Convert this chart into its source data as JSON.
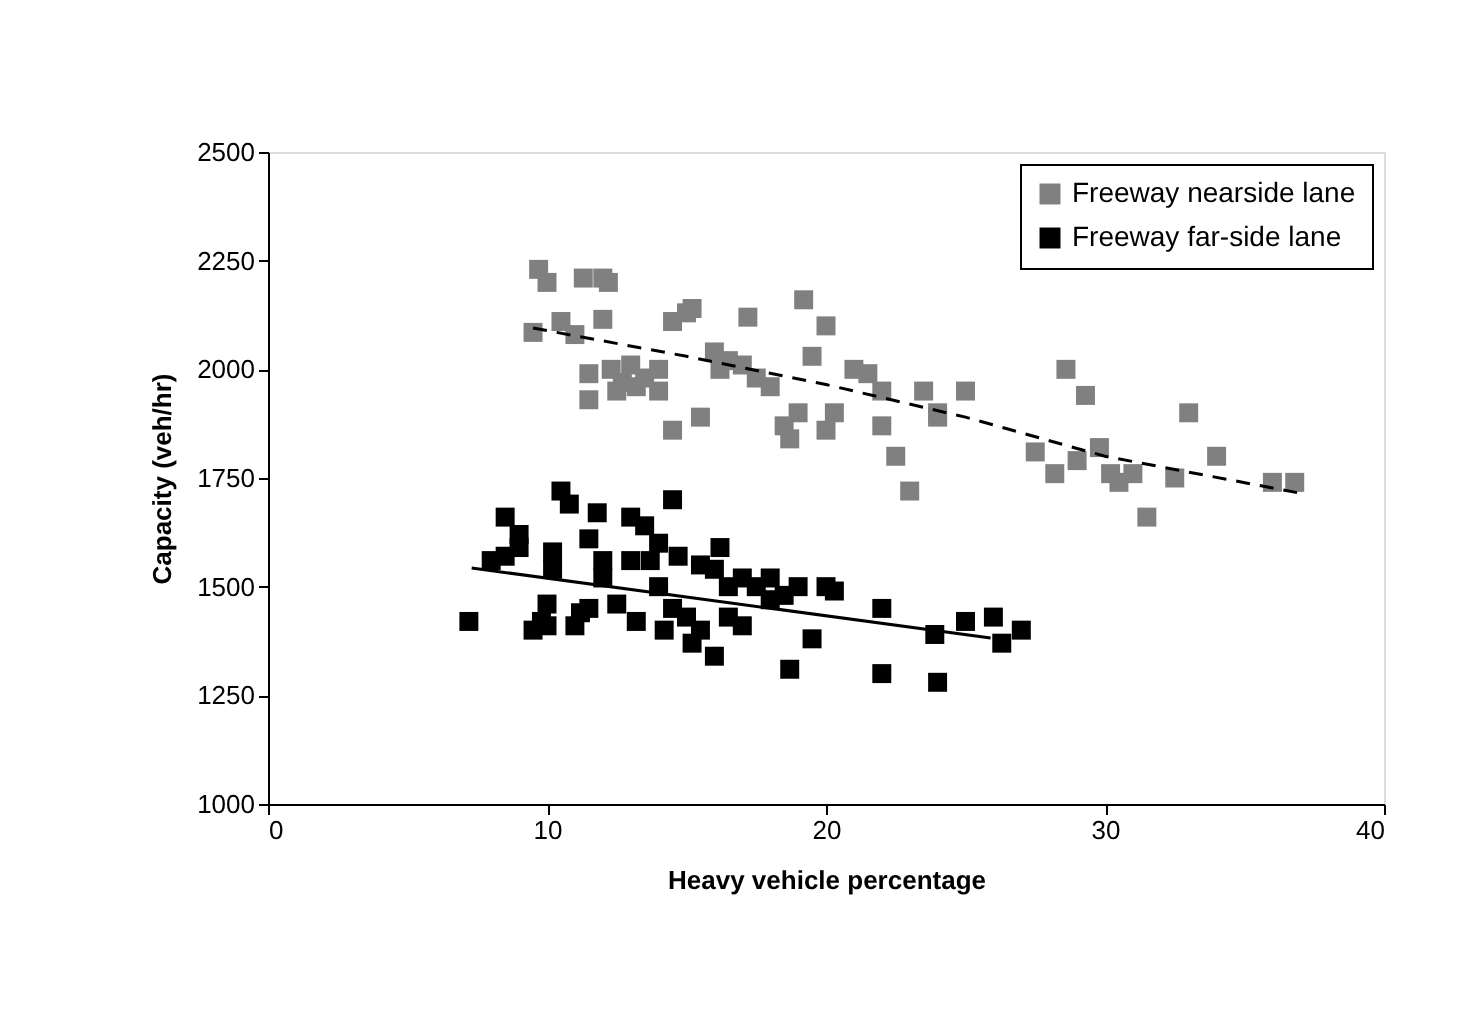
{
  "chart_data": {
    "type": "scatter",
    "xlabel": "Heavy vehicle percentage",
    "ylabel": "Capacity (veh/hr)",
    "xlim": [
      0,
      40
    ],
    "xticks": [
      0,
      10,
      20,
      30,
      40
    ],
    "ylim": [
      1000,
      2500
    ],
    "yticks": [
      1000,
      1250,
      1500,
      1750,
      2000,
      2250,
      2500
    ],
    "grid": false,
    "legend": "top right",
    "marker": "square",
    "series": [
      {
        "name": "Freeway nearside lane",
        "color": "#808080",
        "x": [
          9.5,
          9.7,
          10,
          10.5,
          11,
          11.3,
          11.5,
          11.5,
          12,
          12.2,
          12,
          12.3,
          12.5,
          12.7,
          13,
          13.2,
          13.5,
          14,
          14,
          14.5,
          14.5,
          15,
          15.2,
          15.5,
          16,
          16.2,
          16.5,
          17,
          17.2,
          17.5,
          18,
          18.5,
          18.7,
          19,
          19.2,
          19.5,
          20,
          20,
          20.3,
          21,
          21.5,
          22,
          22,
          22.5,
          23,
          23.5,
          24,
          24,
          25,
          27.5,
          28.2,
          28.6,
          29,
          29.3,
          29.8,
          30.2,
          30.5,
          31,
          31.5,
          32.5,
          33,
          34,
          36,
          36.8
        ],
        "values": [
          2085,
          2230,
          2200,
          2110,
          2080,
          2210,
          1990,
          1930,
          2210,
          2200,
          2115,
          2000,
          1950,
          1970,
          2010,
          1960,
          1980,
          1950,
          2000,
          1860,
          2110,
          2130,
          2140,
          1890,
          2040,
          2000,
          2020,
          2010,
          2120,
          1980,
          1960,
          1870,
          1840,
          1900,
          2160,
          2030,
          1860,
          2100,
          1900,
          2000,
          1990,
          1870,
          1950,
          1800,
          1720,
          1950,
          1900,
          1890,
          1950,
          1810,
          1760,
          2000,
          1790,
          1940,
          1820,
          1760,
          1740,
          1760,
          1660,
          1750,
          1900,
          1800,
          1740,
          1740
        ]
      },
      {
        "name": "Freeway far-side lane",
        "color": "#000000",
        "x": [
          7.2,
          8,
          8.5,
          8.5,
          9,
          9,
          9.5,
          9.8,
          10,
          10,
          10.2,
          10.2,
          10.5,
          10.8,
          11,
          11.2,
          11.5,
          11.5,
          11.8,
          12,
          12,
          12.5,
          13,
          13,
          13.2,
          13.5,
          13.7,
          14,
          14,
          14.2,
          14.5,
          14.5,
          14.7,
          15,
          15.2,
          15.5,
          15.5,
          16,
          16,
          16.2,
          16.5,
          16.5,
          17,
          17,
          17.5,
          18,
          18,
          18.5,
          18.7,
          19,
          19.5,
          20,
          20.3,
          22,
          22,
          23.9,
          24,
          25,
          26,
          26.3,
          27
        ],
        "values": [
          1420,
          1560,
          1660,
          1570,
          1620,
          1590,
          1400,
          1420,
          1460,
          1410,
          1540,
          1580,
          1720,
          1690,
          1410,
          1440,
          1610,
          1450,
          1670,
          1520,
          1560,
          1460,
          1660,
          1560,
          1420,
          1640,
          1560,
          1600,
          1500,
          1400,
          1700,
          1450,
          1570,
          1430,
          1370,
          1550,
          1400,
          1540,
          1340,
          1590,
          1500,
          1430,
          1520,
          1410,
          1500,
          1520,
          1470,
          1480,
          1310,
          1500,
          1380,
          1500,
          1490,
          1300,
          1450,
          1390,
          1280,
          1420,
          1430,
          1370,
          1400
        ]
      },
      {
        "type": "line",
        "color": "#000000",
        "line_style": "dashed",
        "marker": "none",
        "x": [
          9.5,
          15,
          20,
          25,
          30,
          37
        ],
        "values": [
          2095,
          2030,
          1965,
          1890,
          1800,
          1715
        ]
      },
      {
        "type": "line",
        "color": "#000000",
        "line_style": "solid",
        "marker": "none",
        "x": [
          7.3,
          25.9
        ],
        "values": [
          1543,
          1382
        ]
      }
    ]
  }
}
